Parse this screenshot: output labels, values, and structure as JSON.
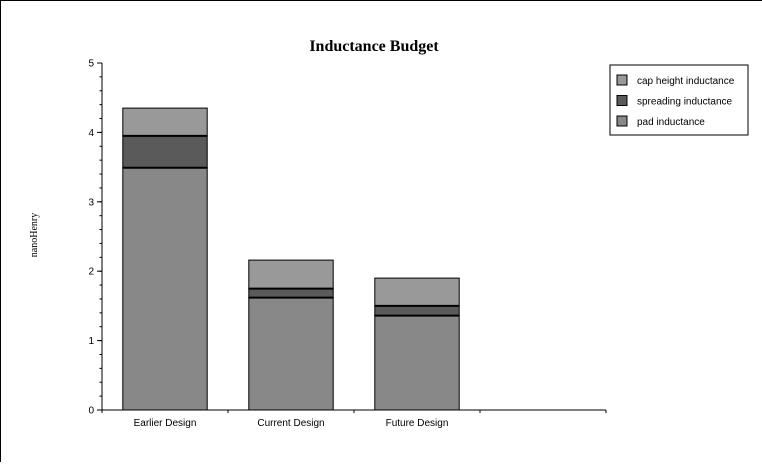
{
  "chart_data": {
    "type": "bar",
    "stacked": true,
    "title": "Inductance Budget",
    "xlabel": "",
    "ylabel": "nanoHenry",
    "ylim": [
      0,
      5
    ],
    "yticks": [
      0,
      1,
      2,
      3,
      4,
      5
    ],
    "categories": [
      "Earlier Design",
      "Current Design",
      "Future Design",
      ""
    ],
    "series": [
      {
        "name": "pad inductance",
        "values": [
          3.49,
          1.62,
          1.36,
          0
        ],
        "color": "#888888"
      },
      {
        "name": "spreading inductance",
        "values": [
          0.46,
          0.13,
          0.14,
          0
        ],
        "color": "#5a5a5a"
      },
      {
        "name": "cap height inductance",
        "values": [
          0.4,
          0.41,
          0.4,
          0
        ],
        "color": "#999999"
      }
    ],
    "legend_order": [
      "cap height inductance",
      "spreading inductance",
      "pad inductance"
    ],
    "legend_position": "top-right",
    "grid": false
  }
}
